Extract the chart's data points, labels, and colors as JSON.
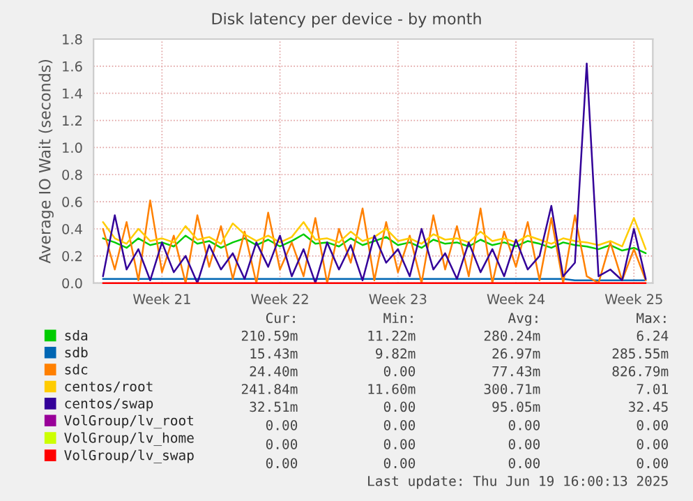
{
  "chart_data": {
    "type": "line",
    "title": "Disk latency per device - by month",
    "ylabel": "Average IO Wait (seconds)",
    "categories": [
      null,
      null,
      null,
      null,
      null,
      "Week 21",
      null,
      null,
      null,
      null,
      null,
      null,
      null,
      null,
      null,
      "Week 22",
      null,
      null,
      null,
      null,
      null,
      null,
      null,
      null,
      null,
      "Week 23",
      null,
      null,
      null,
      null,
      null,
      null,
      null,
      null,
      null,
      "Week 24",
      null,
      null,
      null,
      null,
      null,
      null,
      null,
      null,
      null,
      "Week 25",
      null
    ],
    "ylim": [
      0,
      1.8
    ],
    "yticks": [
      {
        "value": 0,
        "label": "0.0"
      },
      {
        "value": 0.2,
        "label": "0.2"
      },
      {
        "value": 0.4,
        "label": "0.4"
      },
      {
        "value": 0.6,
        "label": "0.6"
      },
      {
        "value": 0.8,
        "label": "0.8"
      },
      {
        "value": 1.0,
        "label": "1.0"
      },
      {
        "value": 1.2,
        "label": "1.2"
      },
      {
        "value": 1.4,
        "label": "1.4"
      },
      {
        "value": 1.6,
        "label": "1.6"
      },
      {
        "value": 1.8,
        "label": "1.8"
      }
    ],
    "grid": true,
    "legend": "bottom",
    "series": [
      {
        "name": "sda",
        "color": "#00cc00",
        "values": [
          0.33,
          0.3,
          0.26,
          0.33,
          0.28,
          0.3,
          0.27,
          0.35,
          0.29,
          0.31,
          0.26,
          0.3,
          0.33,
          0.28,
          0.32,
          0.27,
          0.31,
          0.36,
          0.29,
          0.3,
          0.27,
          0.33,
          0.28,
          0.31,
          0.34,
          0.28,
          0.3,
          0.26,
          0.32,
          0.29,
          0.3,
          0.27,
          0.32,
          0.28,
          0.3,
          0.27,
          0.31,
          0.29,
          0.26,
          0.3,
          0.28,
          0.27,
          0.25,
          0.28,
          0.24,
          0.26,
          0.22
        ]
      },
      {
        "name": "sdb",
        "color": "#0066b3",
        "values": [
          0.03,
          0.03,
          0.03,
          0.03,
          0.03,
          0.03,
          0.03,
          0.03,
          0.03,
          0.03,
          0.03,
          0.03,
          0.03,
          0.03,
          0.03,
          0.03,
          0.03,
          0.03,
          0.03,
          0.03,
          0.03,
          0.03,
          0.03,
          0.03,
          0.03,
          0.03,
          0.03,
          0.03,
          0.03,
          0.03,
          0.03,
          0.03,
          0.03,
          0.03,
          0.03,
          0.03,
          0.03,
          0.03,
          0.03,
          0.03,
          0.02,
          0.02,
          0.02,
          0.02,
          0.02,
          0.02,
          0.02
        ]
      },
      {
        "name": "sdc",
        "color": "#ff8000",
        "values": [
          0.4,
          0.1,
          0.45,
          0.02,
          0.61,
          0.08,
          0.35,
          0.0,
          0.5,
          0.12,
          0.42,
          0.03,
          0.38,
          0.0,
          0.52,
          0.1,
          0.3,
          0.05,
          0.48,
          0.0,
          0.4,
          0.15,
          0.55,
          0.02,
          0.45,
          0.08,
          0.35,
          0.0,
          0.5,
          0.1,
          0.42,
          0.05,
          0.55,
          0.0,
          0.38,
          0.12,
          0.45,
          0.02,
          0.48,
          0.0,
          0.5,
          0.05,
          0.0,
          0.3,
          0.02,
          0.25,
          0.02
        ]
      },
      {
        "name": "centos/root",
        "color": "#ffcc00",
        "values": [
          0.45,
          0.33,
          0.29,
          0.4,
          0.31,
          0.33,
          0.3,
          0.42,
          0.32,
          0.34,
          0.29,
          0.44,
          0.36,
          0.31,
          0.35,
          0.3,
          0.34,
          0.45,
          0.32,
          0.33,
          0.3,
          0.38,
          0.31,
          0.34,
          0.4,
          0.31,
          0.33,
          0.29,
          0.36,
          0.32,
          0.33,
          0.3,
          0.38,
          0.31,
          0.33,
          0.3,
          0.35,
          0.32,
          0.29,
          0.33,
          0.31,
          0.3,
          0.28,
          0.31,
          0.27,
          0.48,
          0.25
        ]
      },
      {
        "name": "centos/swap",
        "color": "#330099",
        "values": [
          0.05,
          0.5,
          0.1,
          0.25,
          0.02,
          0.3,
          0.08,
          0.2,
          0.0,
          0.28,
          0.1,
          0.22,
          0.03,
          0.3,
          0.12,
          0.35,
          0.05,
          0.25,
          0.0,
          0.3,
          0.1,
          0.28,
          0.02,
          0.35,
          0.15,
          0.25,
          0.05,
          0.4,
          0.1,
          0.22,
          0.03,
          0.3,
          0.08,
          0.25,
          0.05,
          0.32,
          0.1,
          0.2,
          0.57,
          0.05,
          0.15,
          1.62,
          0.05,
          0.1,
          0.02,
          0.4,
          0.03
        ]
      },
      {
        "name": "VolGroup/lv_root",
        "color": "#990099",
        "values": [
          null,
          null,
          null,
          null,
          null,
          null,
          null,
          null,
          null,
          null,
          null,
          null,
          null,
          null,
          null,
          null,
          null,
          null,
          null,
          null,
          null,
          null,
          null,
          null,
          null,
          null,
          null,
          null,
          null,
          null,
          null,
          null,
          null,
          null,
          null,
          null,
          null,
          null,
          null,
          null,
          null,
          null,
          null,
          null,
          null,
          null,
          null
        ]
      },
      {
        "name": "VolGroup/lv_home",
        "color": "#ccff00",
        "values": [
          null,
          null,
          null,
          null,
          null,
          null,
          null,
          null,
          null,
          null,
          null,
          null,
          null,
          null,
          null,
          null,
          null,
          null,
          null,
          null,
          null,
          null,
          null,
          null,
          null,
          null,
          null,
          null,
          null,
          null,
          null,
          null,
          null,
          null,
          null,
          null,
          null,
          null,
          null,
          null,
          null,
          null,
          null,
          null,
          null,
          null,
          null
        ]
      },
      {
        "name": "VolGroup/lv_swap",
        "color": "#ff0000",
        "values": [
          0,
          0,
          0,
          0,
          0,
          0,
          0,
          0,
          0,
          0,
          0,
          0,
          0,
          0,
          0,
          0,
          0,
          0,
          0,
          0,
          0,
          0,
          0,
          0,
          0,
          0,
          0,
          0,
          0,
          0,
          0,
          0,
          0,
          0,
          0,
          0,
          0,
          0,
          0,
          0,
          0,
          0,
          0,
          0,
          0,
          0,
          0
        ]
      }
    ],
    "annotations": [
      "Cur:",
      "Min:",
      "Avg:",
      "Max:",
      "210.59m",
      "11.22m",
      "280.24m",
      "6.24",
      "15.43m",
      "9.82m",
      "26.97m",
      "285.55m",
      "24.40m",
      "0.00",
      "77.43m",
      "826.79m",
      "241.84m",
      "11.60m",
      "300.71m",
      "7.01",
      "32.51m",
      "0.00",
      "95.05m",
      "32.45",
      "0.00",
      "0.00",
      "0.00",
      "0.00",
      "0.00",
      "0.00",
      "0.00",
      "0.00",
      "0.00",
      "0.00",
      "0.00",
      "0.00",
      "Last update: Thu Jun 19 16:00:13 2025"
    ]
  }
}
